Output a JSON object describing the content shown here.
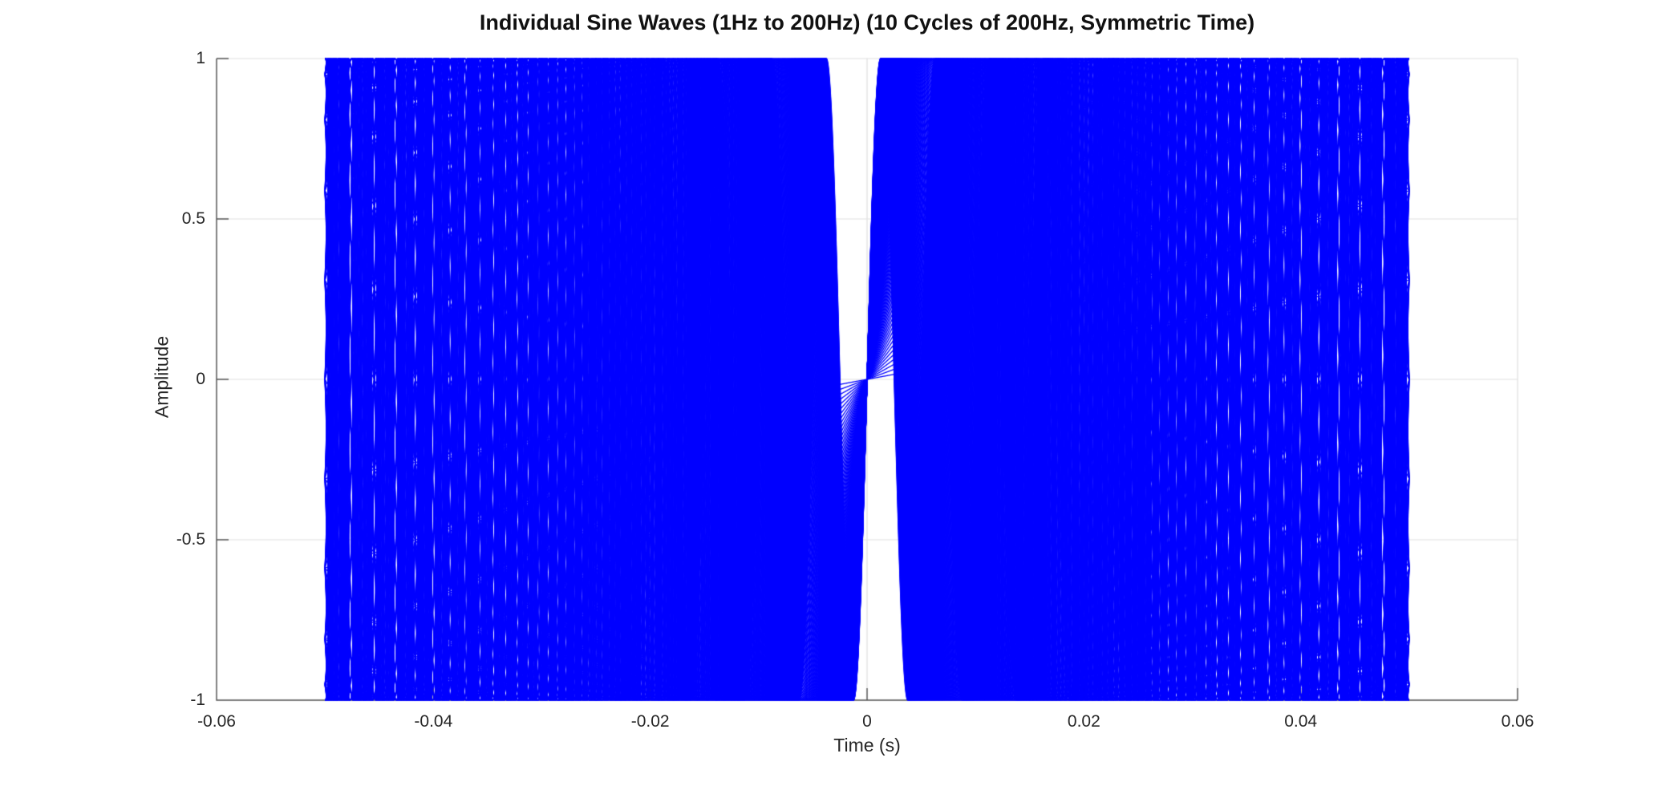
{
  "chart_data": {
    "type": "line",
    "title": "Individual Sine Waves (1Hz to 200Hz) (10 Cycles of 200Hz, Symmetric Time)",
    "xlabel": "Time (s)",
    "ylabel": "Amplitude",
    "xlim": [
      -0.06,
      0.06
    ],
    "ylim": [
      -1,
      1
    ],
    "xticks": [
      -0.06,
      -0.04,
      -0.02,
      0,
      0.02,
      0.04,
      0.06
    ],
    "xtick_labels": [
      "-0.06",
      "-0.04",
      "-0.02",
      "0",
      "0.02",
      "0.04",
      "0.06"
    ],
    "yticks": [
      -1,
      -0.5,
      0,
      0.5,
      1
    ],
    "ytick_labels": [
      "-1",
      "-0.5",
      "0",
      "0.5",
      "1"
    ],
    "grid": true,
    "legend": false,
    "series_generator": {
      "kind": "sine_family",
      "description": "One sine curve per integer frequency from 1 Hz to 200 Hz, unit amplitude, zero phase, plotted over a symmetric time window of 10 cycles of 200 Hz",
      "frequency_start_hz": 1,
      "frequency_end_hz": 200,
      "frequency_step_hz": 1,
      "amplitude": 1,
      "phase_rad": 0,
      "time_start_s": -0.05,
      "time_end_s": 0.05
    },
    "colors": {
      "line": "#0000ff",
      "grid": "#e0e0e0",
      "axis": "#555555",
      "tick_text": "#262626",
      "label_text": "#262626",
      "title_text": "#111111",
      "background": "#ffffff"
    }
  }
}
